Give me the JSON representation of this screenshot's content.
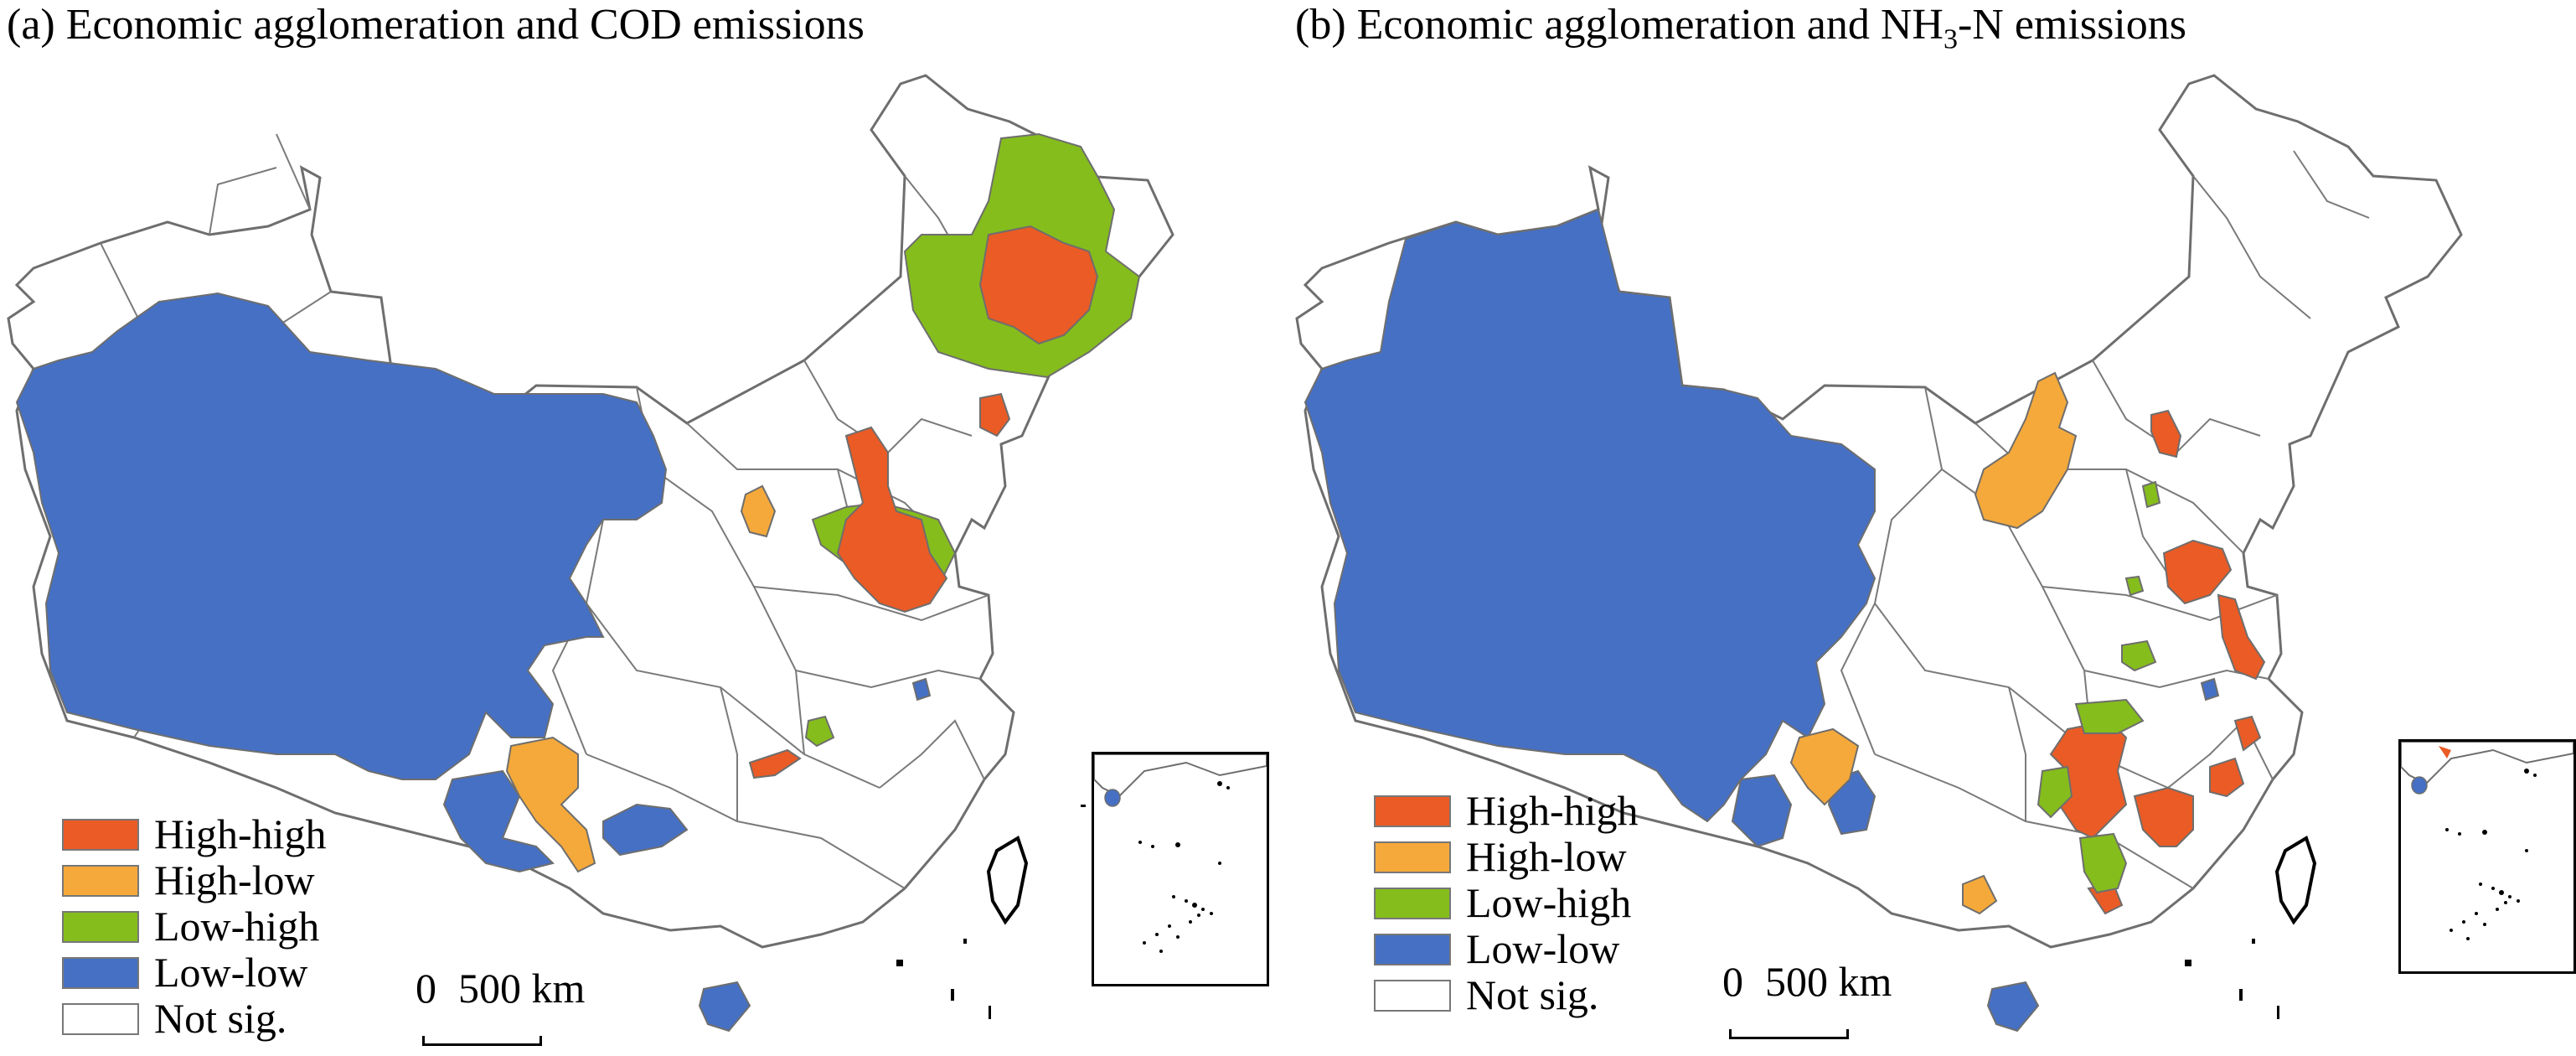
{
  "colors": {
    "high_high": "#EA5B25",
    "high_low": "#F5A93B",
    "low_high": "#85BD1C",
    "low_low": "#4570C4",
    "not_sig": "#FFFFFF",
    "boundary": "#6E6E6E"
  },
  "panels": [
    {
      "id": "a",
      "title_prefix": "(a) Economic agglomeration and ",
      "title_pollutant": "COD",
      "title_subscript": "",
      "title_suffix": " emissions"
    },
    {
      "id": "b",
      "title_prefix": "(b) Economic agglomeration and NH",
      "title_pollutant": "",
      "title_subscript": "3",
      "title_suffix": "-N emissions"
    }
  ],
  "legend": [
    "High-high",
    "High-low",
    "Low-high",
    "Low-low",
    "Not sig."
  ],
  "scale": {
    "zero": "0",
    "distance": "500 km"
  }
}
